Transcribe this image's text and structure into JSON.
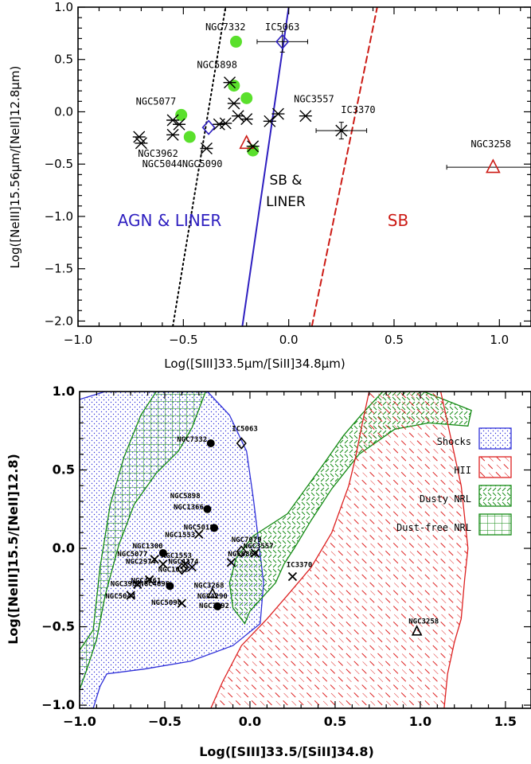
{
  "chart_data": [
    {
      "type": "scatter",
      "xlabel": "Log([SIII]33.5μm/[SiII]34.8μm)",
      "ylabel": "Log([NeIII]15.56μm/[NeII]12.8μm)",
      "xlim": [
        -1.0,
        1.15
      ],
      "ylim": [
        -2.05,
        1.0
      ],
      "xticks": [
        -1.0,
        -0.5,
        0.0,
        0.5,
        1.0
      ],
      "xtick_labels": [
        "−1.0",
        "−0.5",
        "0.0",
        "0.5",
        "1.0"
      ],
      "yticks": [
        -2.0,
        -1.5,
        -1.0,
        -0.5,
        0.0,
        0.5,
        1.0
      ],
      "ytick_labels": [
        "−2.0",
        "−1.5",
        "−1.0",
        "−0.5",
        "0.0",
        "0.5",
        "1.0"
      ],
      "region_labels": [
        {
          "text": "AGN & LINER",
          "color": "#2e1fc0"
        },
        {
          "text": "SB &",
          "color": "#000000"
        },
        {
          "text": "LINER",
          "color": "#000000"
        },
        {
          "text": "SB",
          "color": "#cc1a14"
        }
      ],
      "lines": [
        {
          "style": "dotted",
          "color": "#000000",
          "x": [
            -0.55,
            -0.3
          ],
          "y": [
            -2.05,
            1.0
          ]
        },
        {
          "style": "solid",
          "color": "#2e1fc0",
          "x": [
            -0.22,
            0.0
          ],
          "y": [
            -2.05,
            1.0
          ]
        },
        {
          "style": "dashed",
          "color": "#cc1a14",
          "x": [
            0.11,
            0.42
          ],
          "y": [
            -2.05,
            1.0
          ]
        }
      ],
      "series": [
        {
          "marker": "filled-circle",
          "color": "#5ae02c",
          "points": [
            {
              "x": -0.25,
              "y": 0.67
            },
            {
              "x": -0.26,
              "y": 0.25
            },
            {
              "x": -0.2,
              "y": 0.13
            },
            {
              "x": -0.51,
              "y": -0.03
            },
            {
              "x": -0.47,
              "y": -0.24
            },
            {
              "x": -0.17,
              "y": -0.37
            }
          ]
        },
        {
          "marker": "open-diamond",
          "color": "#2e1fc0",
          "points": [
            {
              "x": -0.03,
              "y": 0.67,
              "xerr": 0.12,
              "yerr": 0.1
            },
            {
              "x": -0.38,
              "y": -0.15
            }
          ]
        },
        {
          "marker": "open-triangle",
          "color": "#cc1a14",
          "points": [
            {
              "x": -0.2,
              "y": -0.3
            },
            {
              "x": 0.97,
              "y": -0.53,
              "xerr": 0.22
            }
          ]
        },
        {
          "marker": "asterisk",
          "color": "#000000",
          "points": [
            {
              "x": -0.28,
              "y": 0.28
            },
            {
              "x": -0.26,
              "y": 0.08
            },
            {
              "x": -0.24,
              "y": -0.04
            },
            {
              "x": -0.2,
              "y": -0.07
            },
            {
              "x": -0.3,
              "y": -0.11
            },
            {
              "x": -0.33,
              "y": -0.12
            },
            {
              "x": -0.55,
              "y": -0.08
            },
            {
              "x": -0.52,
              "y": -0.12
            },
            {
              "x": -0.55,
              "y": -0.22
            },
            {
              "x": -0.71,
              "y": -0.24
            },
            {
              "x": -0.7,
              "y": -0.3
            },
            {
              "x": -0.39,
              "y": -0.35
            },
            {
              "x": -0.17,
              "y": -0.33
            },
            {
              "x": -0.09,
              "y": -0.09
            },
            {
              "x": -0.05,
              "y": -0.02
            },
            {
              "x": 0.08,
              "y": -0.04
            },
            {
              "x": 0.25,
              "y": -0.18,
              "xerr": 0.12,
              "yerr": 0.08
            }
          ]
        }
      ],
      "point_labels": [
        {
          "text": "NGC7332",
          "x": -0.3,
          "y": 0.78
        },
        {
          "text": "IC5063",
          "x": -0.03,
          "y": 0.78
        },
        {
          "text": "NGC5898",
          "x": -0.34,
          "y": 0.42
        },
        {
          "text": "NGC3557",
          "x": 0.12,
          "y": 0.09
        },
        {
          "text": "NGC5077",
          "x": -0.63,
          "y": 0.07
        },
        {
          "text": "IC3370",
          "x": 0.33,
          "y": -0.01
        },
        {
          "text": "NGC3962",
          "x": -0.62,
          "y": -0.43
        },
        {
          "text": "NGC5044",
          "x": -0.6,
          "y": -0.53
        },
        {
          "text": "NGC5090",
          "x": -0.41,
          "y": -0.53
        },
        {
          "text": "NGC3258",
          "x": 0.96,
          "y": -0.34
        }
      ]
    },
    {
      "type": "scatter",
      "xlabel": "Log([SIII]33.5/[SiII]34.8)",
      "ylabel": "Log([NeIII]15.5/[NeII]12.8)",
      "xlim": [
        -1.0,
        1.65
      ],
      "ylim": [
        -1.02,
        1.0
      ],
      "xticks": [
        -1.0,
        -0.5,
        0.0,
        0.5,
        1.0,
        1.5
      ],
      "xtick_labels": [
        "−1.0",
        "−0.5",
        "0.0",
        "0.5",
        "1.0",
        "1.5"
      ],
      "yticks": [
        -1.0,
        -0.5,
        0.0,
        0.5,
        1.0
      ],
      "ytick_labels": [
        "−1.0",
        "−0.5",
        "0.0",
        "0.5",
        "1.0"
      ],
      "legend": {
        "placement": "right",
        "entries": [
          {
            "label": "Shocks",
            "color": "#2e2fd8"
          },
          {
            "label": "HII",
            "color": "#dd2020"
          },
          {
            "label": "Dusty NRL",
            "color": "#138a13"
          },
          {
            "label": "Dust-free NRL",
            "color": "#138a13"
          }
        ]
      },
      "regions": [
        {
          "name": "Shocks",
          "color": "#2e2fd8",
          "polygon": [
            [
              -0.85,
              1.0
            ],
            [
              -0.25,
              1.0
            ],
            [
              -0.12,
              0.85
            ],
            [
              -0.02,
              0.62
            ],
            [
              0.02,
              0.32
            ],
            [
              0.05,
              0.05
            ],
            [
              0.08,
              -0.22
            ],
            [
              0.06,
              -0.48
            ],
            [
              -0.1,
              -0.62
            ],
            [
              -0.35,
              -0.72
            ],
            [
              -0.62,
              -0.77
            ],
            [
              -0.84,
              -0.8
            ],
            [
              -0.88,
              -0.88
            ],
            [
              -0.92,
              -1.02
            ],
            [
              -1.0,
              -1.02
            ],
            [
              -1.0,
              0.95
            ]
          ]
        },
        {
          "name": "Dust-free NRL",
          "color": "#138a13",
          "polygon": [
            [
              -0.55,
              1.0
            ],
            [
              -0.26,
              1.0
            ],
            [
              -0.34,
              0.77
            ],
            [
              -0.42,
              0.62
            ],
            [
              -0.55,
              0.48
            ],
            [
              -0.68,
              0.28
            ],
            [
              -0.77,
              0.02
            ],
            [
              -0.85,
              -0.3
            ],
            [
              -0.9,
              -0.58
            ],
            [
              -0.96,
              -0.78
            ],
            [
              -1.0,
              -0.9
            ],
            [
              -1.0,
              -0.65
            ],
            [
              -0.92,
              -0.52
            ],
            [
              -0.88,
              -0.12
            ],
            [
              -0.82,
              0.28
            ],
            [
              -0.74,
              0.58
            ],
            [
              -0.64,
              0.85
            ]
          ]
        },
        {
          "name": "Dusty NRL",
          "color": "#138a13",
          "polygon": [
            [
              0.78,
              1.0
            ],
            [
              1.02,
              1.0
            ],
            [
              1.3,
              0.88
            ],
            [
              1.28,
              0.78
            ],
            [
              1.05,
              0.8
            ],
            [
              0.85,
              0.76
            ],
            [
              0.64,
              0.6
            ],
            [
              0.48,
              0.38
            ],
            [
              0.36,
              0.18
            ],
            [
              0.26,
              0.0
            ],
            [
              0.2,
              -0.1
            ],
            [
              0.15,
              -0.22
            ],
            [
              0.1,
              -0.28
            ],
            [
              0.0,
              -0.4
            ],
            [
              -0.03,
              -0.48
            ],
            [
              -0.1,
              -0.38
            ],
            [
              -0.12,
              -0.22
            ],
            [
              -0.08,
              -0.06
            ],
            [
              0.02,
              0.08
            ],
            [
              0.12,
              0.15
            ],
            [
              0.22,
              0.22
            ],
            [
              0.34,
              0.4
            ],
            [
              0.44,
              0.55
            ],
            [
              0.55,
              0.72
            ],
            [
              0.66,
              0.86
            ]
          ]
        },
        {
          "name": "HII",
          "color": "#dd2020",
          "polygon": [
            [
              0.7,
              1.0
            ],
            [
              1.12,
              1.0
            ],
            [
              1.16,
              0.8
            ],
            [
              1.2,
              0.6
            ],
            [
              1.24,
              0.4
            ],
            [
              1.26,
              0.2
            ],
            [
              1.28,
              0.0
            ],
            [
              1.26,
              -0.2
            ],
            [
              1.24,
              -0.45
            ],
            [
              1.2,
              -0.6
            ],
            [
              1.16,
              -0.8
            ],
            [
              1.14,
              -1.02
            ],
            [
              -0.23,
              -1.02
            ],
            [
              -0.16,
              -0.85
            ],
            [
              -0.05,
              -0.62
            ],
            [
              0.1,
              -0.45
            ],
            [
              0.22,
              -0.3
            ],
            [
              0.36,
              -0.12
            ],
            [
              0.48,
              0.1
            ],
            [
              0.58,
              0.4
            ],
            [
              0.62,
              0.58
            ],
            [
              0.66,
              0.8
            ]
          ]
        }
      ],
      "series": [
        {
          "marker": "filled-circle",
          "color": "#000000",
          "points": [
            {
              "x": -0.23,
              "y": 0.67
            },
            {
              "x": -0.25,
              "y": 0.25
            },
            {
              "x": -0.21,
              "y": 0.13
            },
            {
              "x": -0.51,
              "y": -0.03
            },
            {
              "x": -0.47,
              "y": -0.24
            },
            {
              "x": -0.19,
              "y": -0.37
            }
          ]
        },
        {
          "marker": "open-diamond",
          "color": "#000000",
          "points": [
            {
              "x": -0.05,
              "y": 0.67
            },
            {
              "x": -0.4,
              "y": -0.13
            },
            {
              "x": -0.05,
              "y": -0.02
            }
          ]
        },
        {
          "marker": "open-triangle",
          "color": "#000000",
          "points": [
            {
              "x": -0.22,
              "y": -0.29
            },
            {
              "x": 0.98,
              "y": -0.53
            }
          ]
        },
        {
          "marker": "cross",
          "color": "#000000",
          "points": [
            {
              "x": -0.3,
              "y": 0.09
            },
            {
              "x": -0.56,
              "y": -0.07
            },
            {
              "x": -0.51,
              "y": -0.1
            },
            {
              "x": -0.38,
              "y": -0.1
            },
            {
              "x": -0.34,
              "y": -0.12
            },
            {
              "x": -0.4,
              "y": -0.35
            },
            {
              "x": -0.59,
              "y": -0.2
            },
            {
              "x": -0.66,
              "y": -0.23
            },
            {
              "x": -0.7,
              "y": -0.3
            },
            {
              "x": -0.11,
              "y": -0.09
            },
            {
              "x": 0.03,
              "y": -0.03
            },
            {
              "x": 0.25,
              "y": -0.18
            }
          ]
        }
      ],
      "point_labels": [
        {
          "text": "NGC7332",
          "x": -0.34,
          "y": 0.68
        },
        {
          "text": "IC5063",
          "x": -0.03,
          "y": 0.75
        },
        {
          "text": "NGC5898",
          "x": -0.38,
          "y": 0.32
        },
        {
          "text": "NGC1366",
          "x": -0.36,
          "y": 0.25
        },
        {
          "text": "NGC5018",
          "x": -0.3,
          "y": 0.12
        },
        {
          "text": "NGC1553",
          "x": -0.41,
          "y": 0.07
        },
        {
          "text": "NGC1300",
          "x": -0.6,
          "y": 0.0
        },
        {
          "text": "NGC5077",
          "x": -0.69,
          "y": -0.05
        },
        {
          "text": "NGC1553",
          "x": -0.43,
          "y": -0.06
        },
        {
          "text": "NGC2974",
          "x": -0.64,
          "y": -0.1
        },
        {
          "text": "NGC4374",
          "x": -0.39,
          "y": -0.1
        },
        {
          "text": "NGC1052",
          "x": -0.45,
          "y": -0.15
        },
        {
          "text": "NGC7079",
          "x": -0.02,
          "y": 0.04
        },
        {
          "text": "NGC3557",
          "x": 0.05,
          "y": 0.0
        },
        {
          "text": "NGC6868",
          "x": -0.04,
          "y": -0.05
        },
        {
          "text": "NGC3962",
          "x": -0.73,
          "y": -0.24
        },
        {
          "text": "NGC4261",
          "x": -0.61,
          "y": -0.22
        },
        {
          "text": "NGC4696",
          "x": -0.56,
          "y": -0.24
        },
        {
          "text": "NGC5044",
          "x": -0.76,
          "y": -0.32
        },
        {
          "text": "NGC5090",
          "x": -0.49,
          "y": -0.36
        },
        {
          "text": "NGC3268",
          "x": -0.24,
          "y": -0.25
        },
        {
          "text": "NGC4290",
          "x": -0.22,
          "y": -0.32
        },
        {
          "text": "NGC7192",
          "x": -0.21,
          "y": -0.38
        },
        {
          "text": "IC3370",
          "x": 0.29,
          "y": -0.12
        },
        {
          "text": "NGC3258",
          "x": 1.02,
          "y": -0.48
        }
      ]
    }
  ]
}
